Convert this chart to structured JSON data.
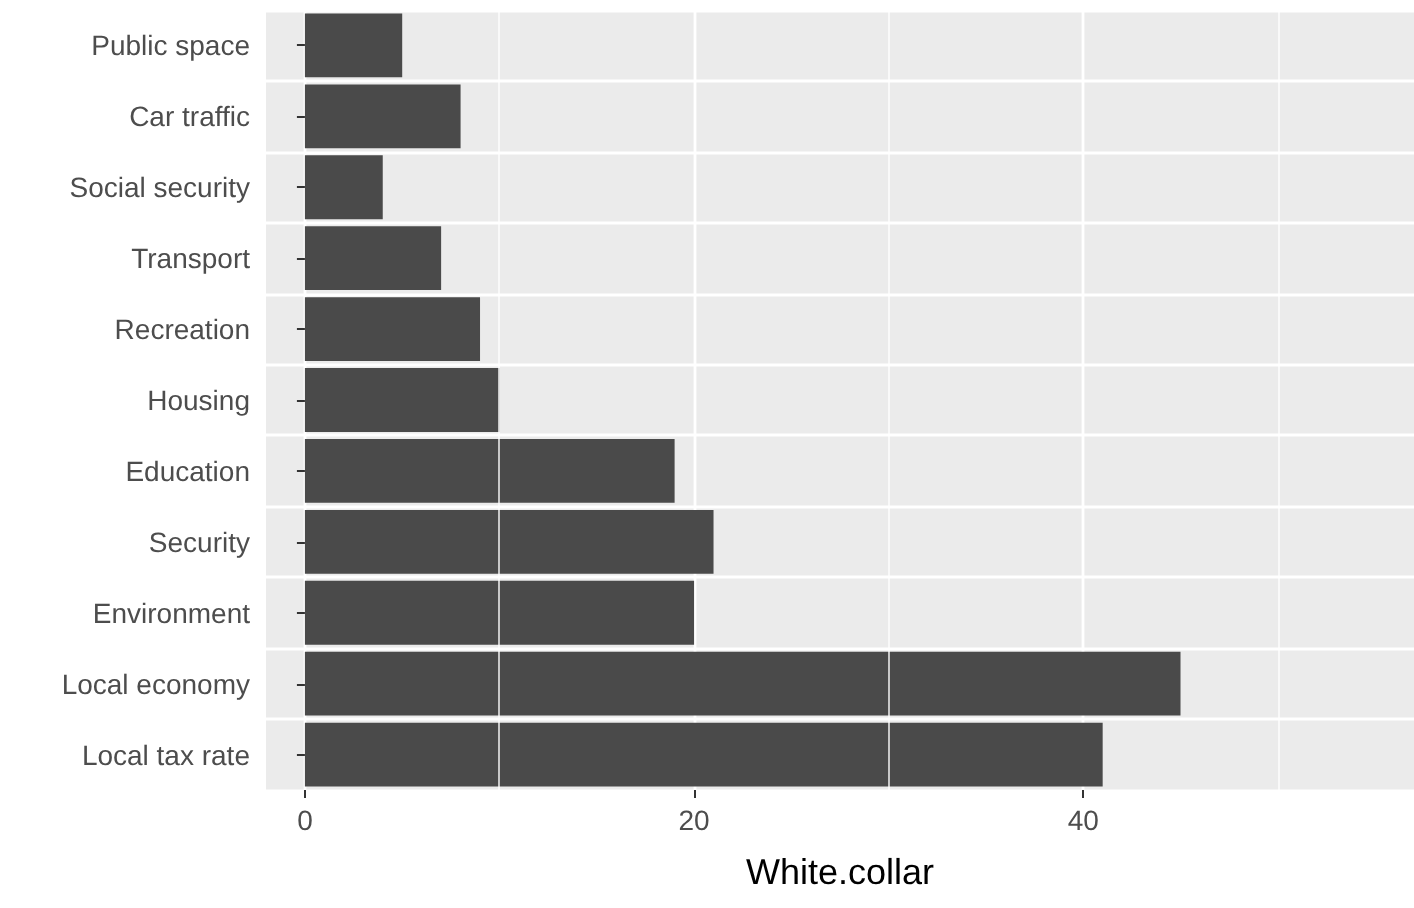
{
  "chart_data": {
    "type": "bar",
    "orientation": "horizontal",
    "xlabel": "White.collar",
    "categories": [
      "Public space",
      "Car traffic",
      "Social security",
      "Transport",
      "Recreation",
      "Housing",
      "Education",
      "Security",
      "Environment",
      "Local economy",
      "Local tax rate"
    ],
    "values": [
      5,
      8,
      4,
      7,
      9,
      10,
      19,
      21,
      20,
      45,
      41
    ],
    "color": "#4a4a4a",
    "xlim": [
      -2,
      57
    ],
    "xticks": [
      0,
      {
        "value": 10,
        "label": null
      },
      20,
      {
        "value": 30,
        "label": null
      },
      40,
      {
        "value": 50,
        "label": null
      }
    ],
    "grid": true
  }
}
